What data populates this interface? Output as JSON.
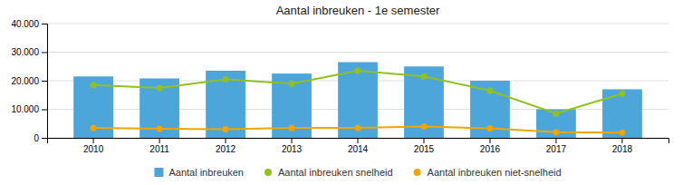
{
  "chart_data": {
    "type": "bar",
    "title": "Aantal inbreuken - 1e semester",
    "categories": [
      "2010",
      "2011",
      "2012",
      "2013",
      "2014",
      "2015",
      "2016",
      "2017",
      "2018"
    ],
    "series": [
      {
        "name": "Aantal inbreuken",
        "type": "bar",
        "color": "#4da6d9",
        "values": [
          21500,
          20800,
          23500,
          22500,
          26500,
          25000,
          20000,
          10000,
          17000
        ]
      },
      {
        "name": "Aantal inbreuken snelheid",
        "type": "line",
        "marker": "circle",
        "color": "#92c01f",
        "values": [
          18500,
          17500,
          20500,
          19000,
          23500,
          21500,
          16500,
          8500,
          15500
        ]
      },
      {
        "name": "Aantal inbreuken niet-snelheid",
        "type": "line",
        "marker": "circle",
        "color": "#f0a500",
        "values": [
          3500,
          3200,
          3000,
          3500,
          3500,
          4000,
          3300,
          2000,
          1800
        ]
      }
    ],
    "ylim": [
      0,
      40000
    ],
    "yticks": [
      0,
      {
        "value": 10000,
        "label": "10.000"
      },
      {
        "value": 20000,
        "label": "20.000"
      },
      {
        "value": 30000,
        "label": "30.000"
      },
      {
        "value": 40000,
        "label": "40.000"
      }
    ],
    "grid": true,
    "legend": "bottom"
  }
}
